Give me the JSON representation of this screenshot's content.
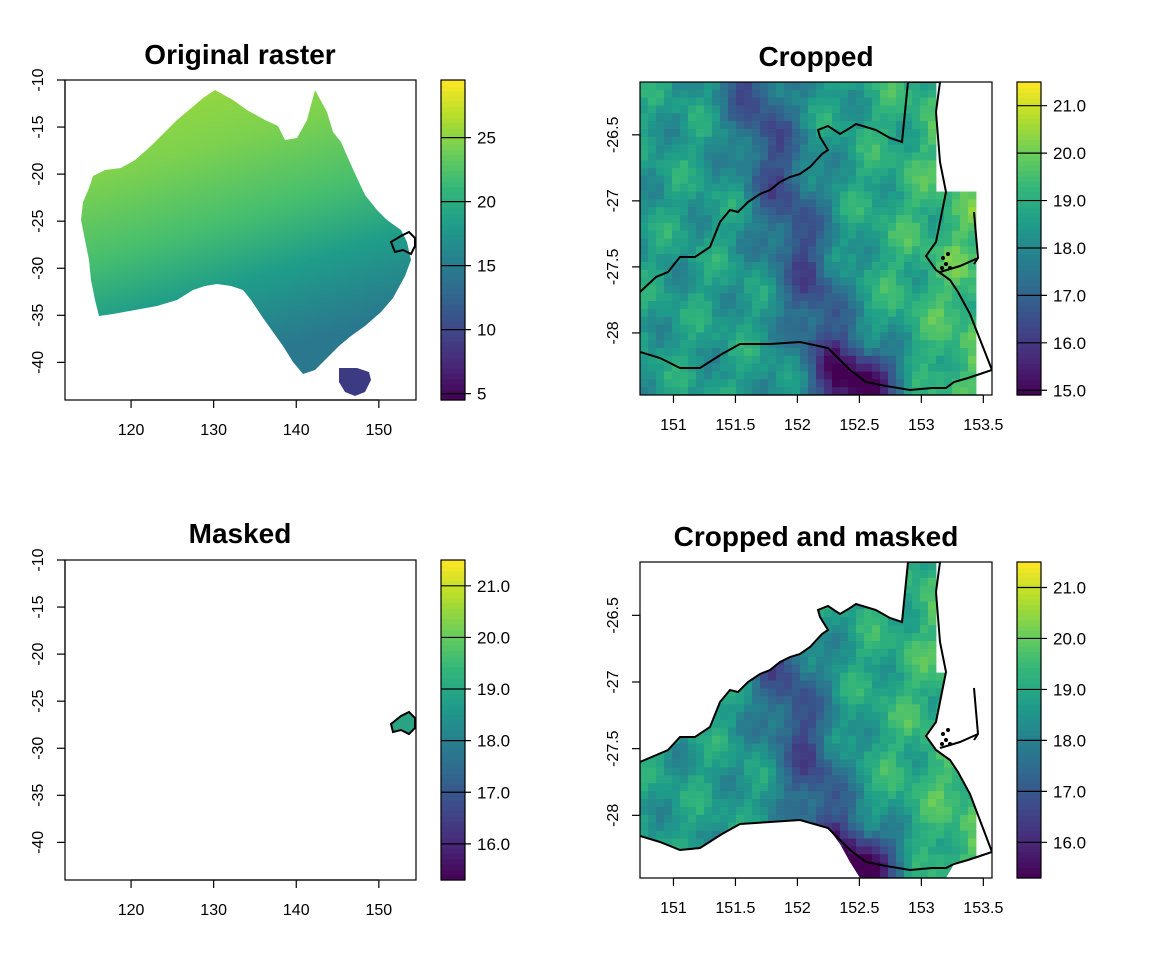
{
  "colors": {
    "viridis": [
      "#440154",
      "#482878",
      "#3e4989",
      "#31688e",
      "#26828e",
      "#1f9e89",
      "#35b779",
      "#6ece58",
      "#b5de2b",
      "#fde725"
    ],
    "outline": "#000000",
    "background": "#ffffff"
  },
  "chart_data": [
    {
      "id": "original",
      "type": "heatmap",
      "title": "Original raster",
      "xlabel": "",
      "ylabel": "",
      "xlim": [
        112,
        154.5
      ],
      "ylim": [
        -44,
        -10
      ],
      "x_ticks": [
        "120",
        "130",
        "140",
        "150"
      ],
      "y_ticks": [
        "-10",
        "-15",
        "-20",
        "-25",
        "-30",
        "-35",
        "-40"
      ],
      "legend": {
        "ticks": [
          "5",
          "10",
          "15",
          "20",
          "25"
        ],
        "range": [
          4.5,
          29.5
        ]
      },
      "description_shapes": "australia-mainland, tasmania, region-outline"
    },
    {
      "id": "cropped",
      "type": "heatmap",
      "title": "Cropped",
      "xlabel": "",
      "ylabel": "",
      "xlim": [
        150.73,
        153.57
      ],
      "ylim": [
        -28.47,
        -26.1
      ],
      "x_ticks": [
        "151",
        "151.5",
        "152",
        "152.5",
        "153",
        "153.5"
      ],
      "y_ticks": [
        "-26.5",
        "-27",
        "-27.5",
        "-28"
      ],
      "legend": {
        "ticks": [
          "15.0",
          "16.0",
          "17.0",
          "18.0",
          "19.0",
          "20.0",
          "21.0"
        ],
        "range": [
          14.9,
          21.5
        ]
      }
    },
    {
      "id": "masked",
      "type": "heatmap",
      "title": "Masked",
      "xlabel": "",
      "ylabel": "",
      "xlim": [
        112,
        154.5
      ],
      "ylim": [
        -44,
        -10
      ],
      "x_ticks": [
        "120",
        "130",
        "140",
        "150"
      ],
      "y_ticks": [
        "-10",
        "-15",
        "-20",
        "-25",
        "-30",
        "-35",
        "-40"
      ],
      "legend": {
        "ticks": [
          "16.0",
          "17.0",
          "18.0",
          "19.0",
          "20.0",
          "21.0"
        ],
        "range": [
          15.3,
          21.5
        ]
      }
    },
    {
      "id": "cropmask",
      "type": "heatmap",
      "title": "Cropped and masked",
      "xlabel": "",
      "ylabel": "",
      "xlim": [
        150.73,
        153.57
      ],
      "ylim": [
        -28.47,
        -26.1
      ],
      "x_ticks": [
        "151",
        "151.5",
        "152",
        "152.5",
        "153",
        "153.5"
      ],
      "y_ticks": [
        "-26.5",
        "-27",
        "-27.5",
        "-28"
      ],
      "legend": {
        "ticks": [
          "16.0",
          "17.0",
          "18.0",
          "19.0",
          "20.0",
          "21.0"
        ],
        "range": [
          15.3,
          21.5
        ]
      }
    }
  ]
}
